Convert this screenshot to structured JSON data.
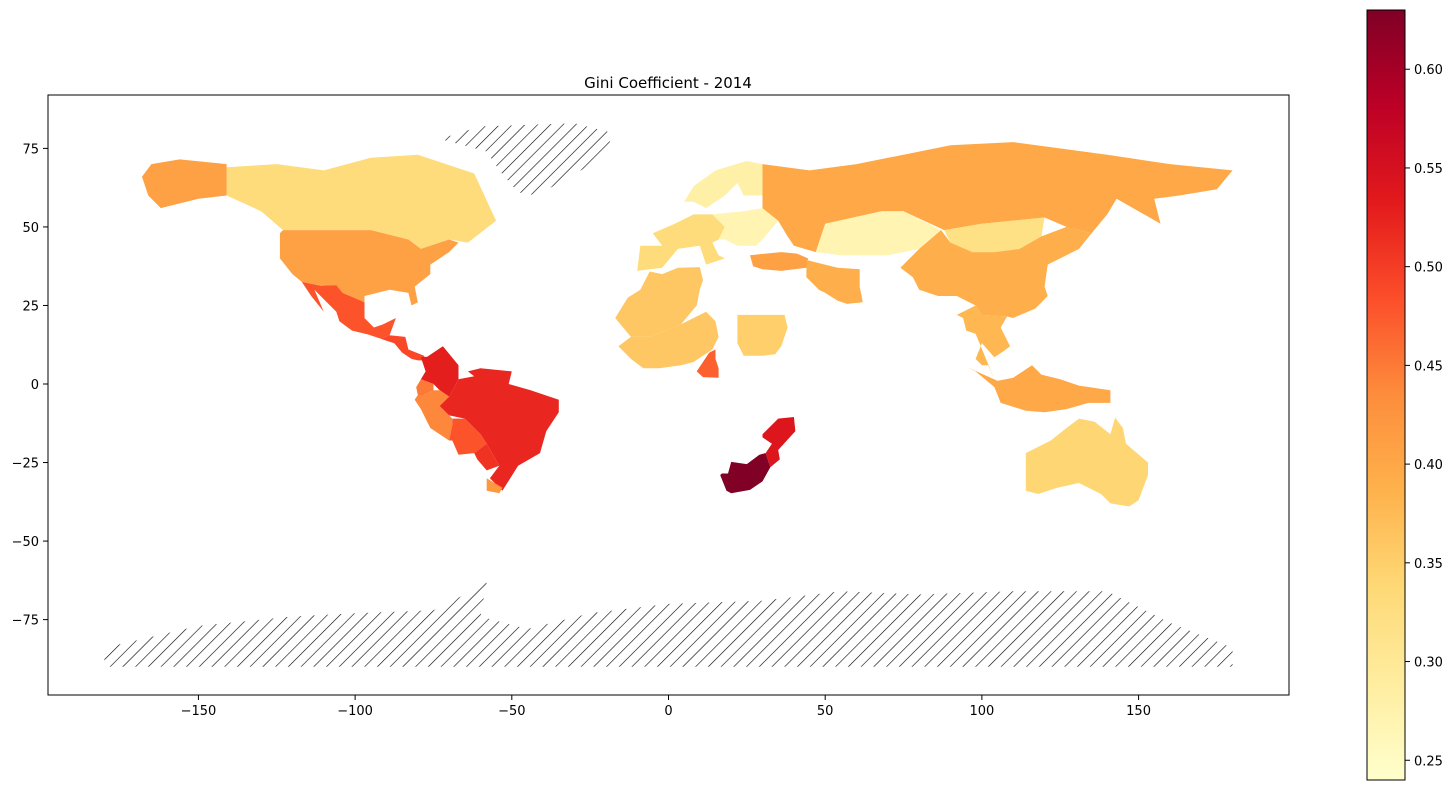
{
  "title": "Gini Coefficient - 2014",
  "map": {
    "projection": "equirectangular",
    "x_range": [
      -198,
      198
    ],
    "y_range": [
      -99,
      92
    ],
    "x_ticks": [
      -150,
      -100,
      -50,
      0,
      50,
      100,
      150
    ],
    "y_ticks": [
      75,
      50,
      25,
      0,
      -25,
      -50,
      -75
    ],
    "no_data_pattern": "diagonal-hatch",
    "regions": [
      {
        "name": "Canada",
        "value": 0.33
      },
      {
        "name": "Alaska",
        "value": 0.41
      },
      {
        "name": "United States",
        "value": 0.41
      },
      {
        "name": "Mexico",
        "value": 0.48
      },
      {
        "name": "Central America",
        "value": 0.49
      },
      {
        "name": "Colombia",
        "value": 0.53
      },
      {
        "name": "Ecuador",
        "value": 0.45
      },
      {
        "name": "Peru",
        "value": 0.44
      },
      {
        "name": "Brazil",
        "value": 0.52
      },
      {
        "name": "Bolivia",
        "value": 0.48
      },
      {
        "name": "Paraguay",
        "value": 0.51
      },
      {
        "name": "Uruguay",
        "value": 0.42
      },
      {
        "name": "Greenland",
        "value": null
      },
      {
        "name": "Northern Europe",
        "value": 0.28
      },
      {
        "name": "Western Europe",
        "value": 0.33
      },
      {
        "name": "Eastern Europe",
        "value": 0.27
      },
      {
        "name": "Russia",
        "value": 0.4
      },
      {
        "name": "Kazakhstan",
        "value": 0.27
      },
      {
        "name": "Mongolia",
        "value": 0.32
      },
      {
        "name": "China",
        "value": 0.39
      },
      {
        "name": "Turkey",
        "value": 0.41
      },
      {
        "name": "Iran",
        "value": 0.39
      },
      {
        "name": "North Africa",
        "value": 0.36
      },
      {
        "name": "West Africa",
        "value": 0.36
      },
      {
        "name": "Sudan",
        "value": 0.35
      },
      {
        "name": "Cameroon",
        "value": 0.47
      },
      {
        "name": "Mozambique",
        "value": 0.54
      },
      {
        "name": "South Africa",
        "value": 0.63
      },
      {
        "name": "Southeast Asia",
        "value": 0.38
      },
      {
        "name": "Indonesia",
        "value": 0.4
      },
      {
        "name": "Australia",
        "value": 0.34
      },
      {
        "name": "Antarctica",
        "value": null
      }
    ]
  },
  "colorbar": {
    "min": 0.24,
    "max": 0.63,
    "ticks": [
      "0.25",
      "0.30",
      "0.35",
      "0.40",
      "0.45",
      "0.50",
      "0.55",
      "0.60"
    ],
    "tick_values": [
      0.25,
      0.3,
      0.35,
      0.4,
      0.45,
      0.5,
      0.55,
      0.6
    ],
    "colormap": [
      "#ffffcc",
      "#ffeda0",
      "#fed976",
      "#feb24c",
      "#fd8d3c",
      "#fc4e2a",
      "#e31a1c",
      "#bd0026",
      "#800026"
    ]
  }
}
